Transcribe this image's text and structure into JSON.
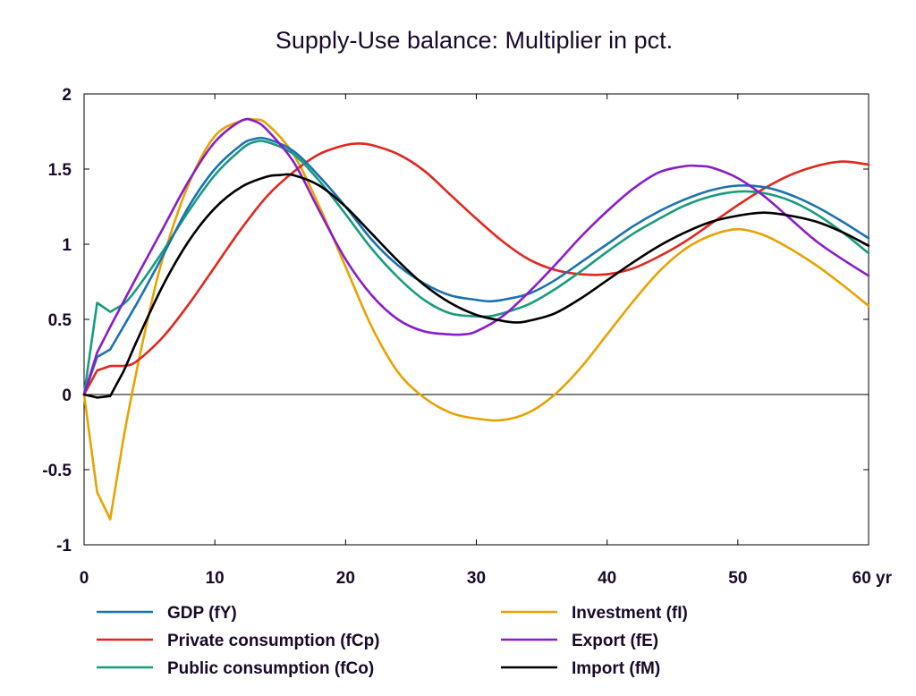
{
  "chart_data": {
    "type": "line",
    "title": "Supply-Use balance: Multiplier in pct.",
    "xlabel": "",
    "ylabel": "",
    "xlim": [
      0,
      60
    ],
    "ylim": [
      -1,
      2
    ],
    "x_ticks": [
      {
        "value": 0,
        "label": "0"
      },
      {
        "value": 10,
        "label": "10"
      },
      {
        "value": 20,
        "label": "20"
      },
      {
        "value": 30,
        "label": "30"
      },
      {
        "value": 40,
        "label": "40"
      },
      {
        "value": 50,
        "label": "50"
      },
      {
        "value": 60,
        "label": "60 yr"
      }
    ],
    "y_ticks": [
      {
        "value": 2,
        "label": "2"
      },
      {
        "value": 1.5,
        "label": "1.5"
      },
      {
        "value": 1,
        "label": "1"
      },
      {
        "value": 0.5,
        "label": "0.5"
      },
      {
        "value": 0,
        "label": "0"
      },
      {
        "value": -0.5,
        "label": "-0.5"
      },
      {
        "value": -1,
        "label": "-1"
      }
    ],
    "zero_line": true,
    "grid": false,
    "legend_placement": "bottom",
    "series": [
      {
        "name": "GDP (fY)",
        "color": "#1b72b0",
        "points": [
          [
            0,
            0
          ],
          [
            1,
            0.25
          ],
          [
            2,
            0.3
          ],
          [
            4,
            0.6
          ],
          [
            6,
            0.92
          ],
          [
            8,
            1.25
          ],
          [
            10,
            1.5
          ],
          [
            12,
            1.66
          ],
          [
            13,
            1.7
          ],
          [
            14,
            1.7
          ],
          [
            16,
            1.62
          ],
          [
            18,
            1.45
          ],
          [
            20,
            1.25
          ],
          [
            22,
            1.03
          ],
          [
            24,
            0.86
          ],
          [
            26,
            0.74
          ],
          [
            28,
            0.66
          ],
          [
            30,
            0.63
          ],
          [
            31,
            0.62
          ],
          [
            32,
            0.63
          ],
          [
            34,
            0.67
          ],
          [
            36,
            0.76
          ],
          [
            38,
            0.88
          ],
          [
            40,
            1.0
          ],
          [
            42,
            1.12
          ],
          [
            44,
            1.22
          ],
          [
            46,
            1.3
          ],
          [
            48,
            1.36
          ],
          [
            50,
            1.39
          ],
          [
            52,
            1.38
          ],
          [
            54,
            1.33
          ],
          [
            56,
            1.25
          ],
          [
            58,
            1.15
          ],
          [
            60,
            1.04
          ]
        ]
      },
      {
        "name": "Private consumption (fCp)",
        "color": "#e0281e",
        "points": [
          [
            0,
            0
          ],
          [
            1,
            0.16
          ],
          [
            2,
            0.19
          ],
          [
            3,
            0.19
          ],
          [
            4,
            0.22
          ],
          [
            6,
            0.38
          ],
          [
            8,
            0.6
          ],
          [
            10,
            0.85
          ],
          [
            12,
            1.1
          ],
          [
            14,
            1.32
          ],
          [
            16,
            1.48
          ],
          [
            18,
            1.6
          ],
          [
            20,
            1.66
          ],
          [
            21,
            1.67
          ],
          [
            22,
            1.66
          ],
          [
            24,
            1.6
          ],
          [
            26,
            1.49
          ],
          [
            28,
            1.33
          ],
          [
            30,
            1.17
          ],
          [
            32,
            1.02
          ],
          [
            34,
            0.9
          ],
          [
            36,
            0.83
          ],
          [
            38,
            0.8
          ],
          [
            40,
            0.8
          ],
          [
            42,
            0.84
          ],
          [
            44,
            0.92
          ],
          [
            46,
            1.02
          ],
          [
            48,
            1.14
          ],
          [
            50,
            1.26
          ],
          [
            52,
            1.37
          ],
          [
            54,
            1.46
          ],
          [
            56,
            1.52
          ],
          [
            58,
            1.55
          ],
          [
            60,
            1.53
          ]
        ]
      },
      {
        "name": "Public consumption (fCo)",
        "color": "#179c7d",
        "points": [
          [
            0,
            0
          ],
          [
            1,
            0.61
          ],
          [
            2,
            0.55
          ],
          [
            3,
            0.6
          ],
          [
            4,
            0.7
          ],
          [
            6,
            0.95
          ],
          [
            8,
            1.22
          ],
          [
            10,
            1.46
          ],
          [
            12,
            1.63
          ],
          [
            13,
            1.68
          ],
          [
            14,
            1.68
          ],
          [
            16,
            1.6
          ],
          [
            18,
            1.42
          ],
          [
            20,
            1.2
          ],
          [
            22,
            0.97
          ],
          [
            24,
            0.78
          ],
          [
            26,
            0.63
          ],
          [
            28,
            0.54
          ],
          [
            30,
            0.52
          ],
          [
            31,
            0.52
          ],
          [
            32,
            0.54
          ],
          [
            34,
            0.6
          ],
          [
            36,
            0.7
          ],
          [
            38,
            0.82
          ],
          [
            40,
            0.95
          ],
          [
            42,
            1.07
          ],
          [
            44,
            1.17
          ],
          [
            46,
            1.26
          ],
          [
            48,
            1.32
          ],
          [
            50,
            1.35
          ],
          [
            52,
            1.34
          ],
          [
            54,
            1.29
          ],
          [
            56,
            1.2
          ],
          [
            58,
            1.08
          ],
          [
            60,
            0.94
          ]
        ]
      },
      {
        "name": "Investment (fI)",
        "color": "#e8a300",
        "points": [
          [
            0,
            0
          ],
          [
            1,
            -0.65
          ],
          [
            2,
            -0.83
          ],
          [
            3,
            -0.3
          ],
          [
            4,
            0.15
          ],
          [
            5,
            0.55
          ],
          [
            6,
            0.9
          ],
          [
            8,
            1.4
          ],
          [
            10,
            1.72
          ],
          [
            12,
            1.82
          ],
          [
            13,
            1.83
          ],
          [
            14,
            1.8
          ],
          [
            16,
            1.6
          ],
          [
            18,
            1.25
          ],
          [
            20,
            0.85
          ],
          [
            22,
            0.45
          ],
          [
            24,
            0.15
          ],
          [
            26,
            -0.02
          ],
          [
            28,
            -0.12
          ],
          [
            30,
            -0.16
          ],
          [
            32,
            -0.17
          ],
          [
            34,
            -0.12
          ],
          [
            36,
            0.0
          ],
          [
            38,
            0.18
          ],
          [
            40,
            0.4
          ],
          [
            42,
            0.62
          ],
          [
            44,
            0.82
          ],
          [
            46,
            0.97
          ],
          [
            48,
            1.06
          ],
          [
            50,
            1.1
          ],
          [
            52,
            1.06
          ],
          [
            54,
            0.97
          ],
          [
            56,
            0.86
          ],
          [
            58,
            0.73
          ],
          [
            60,
            0.59
          ]
        ]
      },
      {
        "name": "Export (fE)",
        "color": "#8a1cc9",
        "points": [
          [
            0,
            0
          ],
          [
            1,
            0.28
          ],
          [
            2,
            0.45
          ],
          [
            4,
            0.78
          ],
          [
            6,
            1.1
          ],
          [
            8,
            1.42
          ],
          [
            10,
            1.68
          ],
          [
            12,
            1.82
          ],
          [
            13,
            1.82
          ],
          [
            14,
            1.76
          ],
          [
            16,
            1.55
          ],
          [
            18,
            1.22
          ],
          [
            20,
            0.9
          ],
          [
            22,
            0.66
          ],
          [
            24,
            0.5
          ],
          [
            26,
            0.42
          ],
          [
            28,
            0.4
          ],
          [
            29,
            0.4
          ],
          [
            30,
            0.42
          ],
          [
            32,
            0.52
          ],
          [
            34,
            0.68
          ],
          [
            36,
            0.86
          ],
          [
            38,
            1.05
          ],
          [
            40,
            1.22
          ],
          [
            42,
            1.37
          ],
          [
            44,
            1.48
          ],
          [
            46,
            1.52
          ],
          [
            47,
            1.52
          ],
          [
            48,
            1.51
          ],
          [
            50,
            1.44
          ],
          [
            52,
            1.32
          ],
          [
            54,
            1.17
          ],
          [
            56,
            1.02
          ],
          [
            58,
            0.9
          ],
          [
            60,
            0.79
          ]
        ]
      },
      {
        "name": "Import (fM)",
        "color": "#000000",
        "points": [
          [
            0,
            0
          ],
          [
            1,
            -0.02
          ],
          [
            2,
            -0.01
          ],
          [
            3,
            0.15
          ],
          [
            4,
            0.35
          ],
          [
            6,
            0.72
          ],
          [
            8,
            1.02
          ],
          [
            10,
            1.24
          ],
          [
            12,
            1.38
          ],
          [
            14,
            1.45
          ],
          [
            15,
            1.46
          ],
          [
            16,
            1.46
          ],
          [
            18,
            1.39
          ],
          [
            20,
            1.25
          ],
          [
            22,
            1.07
          ],
          [
            24,
            0.89
          ],
          [
            26,
            0.73
          ],
          [
            28,
            0.61
          ],
          [
            30,
            0.53
          ],
          [
            32,
            0.49
          ],
          [
            33,
            0.48
          ],
          [
            34,
            0.49
          ],
          [
            36,
            0.54
          ],
          [
            38,
            0.64
          ],
          [
            40,
            0.76
          ],
          [
            42,
            0.88
          ],
          [
            44,
            0.99
          ],
          [
            46,
            1.08
          ],
          [
            48,
            1.15
          ],
          [
            50,
            1.19
          ],
          [
            52,
            1.21
          ],
          [
            54,
            1.19
          ],
          [
            56,
            1.15
          ],
          [
            58,
            1.08
          ],
          [
            60,
            0.99
          ]
        ]
      }
    ]
  }
}
